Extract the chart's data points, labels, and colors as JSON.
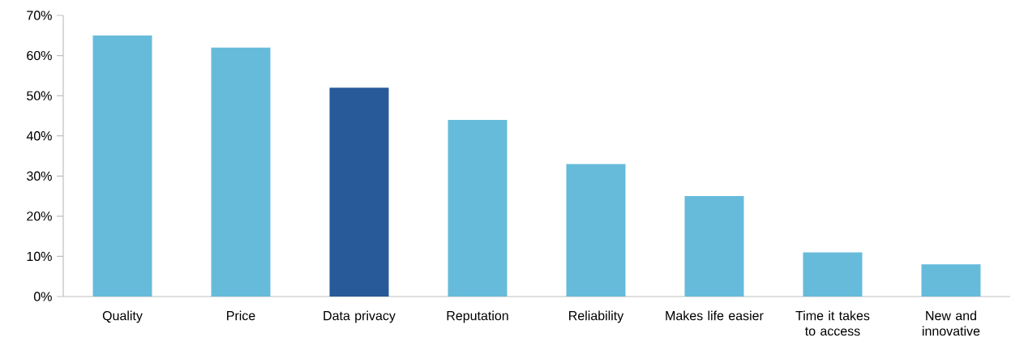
{
  "chart_data": {
    "type": "bar",
    "categories": [
      "Quality",
      "Price",
      "Data privacy",
      "Reputation",
      "Reliability",
      "Makes life easier",
      "Time it takes to access",
      "New and innovative"
    ],
    "values": [
      65,
      62,
      52,
      44,
      33,
      25,
      11,
      8
    ],
    "colors": [
      "#66bbdb",
      "#66bbdb",
      "#285a99",
      "#66bbdb",
      "#66bbdb",
      "#66bbdb",
      "#66bbdb",
      "#66bbdb"
    ],
    "ylim": [
      0,
      70
    ],
    "yticks": [
      {
        "value": 0,
        "label": "0%"
      },
      {
        "value": 10,
        "label": "10%"
      },
      {
        "value": 20,
        "label": "20%"
      },
      {
        "value": 30,
        "label": "30%"
      },
      {
        "value": 40,
        "label": "40%"
      },
      {
        "value": 50,
        "label": "50%"
      },
      {
        "value": 60,
        "label": "60%"
      },
      {
        "value": 70,
        "label": "70%"
      }
    ]
  }
}
